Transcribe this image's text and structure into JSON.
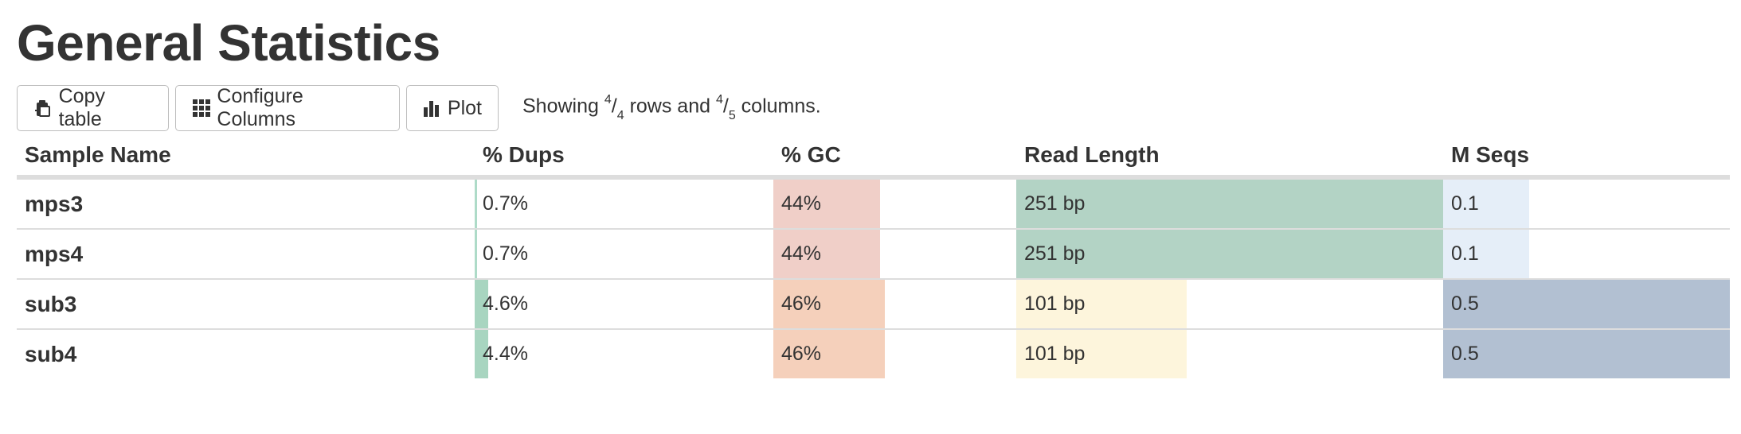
{
  "title": "General Statistics",
  "toolbar": {
    "copy_label": "Copy table",
    "configure_label": "Configure Columns",
    "plot_label": "Plot",
    "status_prefix": "Showing ",
    "rows_shown": "4",
    "rows_total": "4",
    "status_mid": " rows and ",
    "cols_shown": "4",
    "cols_total": "5",
    "status_suffix": " columns."
  },
  "columns": [
    "Sample Name",
    "% Dups",
    "% GC",
    "Read Length",
    "M Seqs"
  ],
  "rows": [
    {
      "name": "mps3",
      "dups": {
        "text": "0.7%",
        "fraction": 0.007,
        "color": "#aedbc8"
      },
      "gc": {
        "text": "44%",
        "fraction": 0.44,
        "color": "#f0cfc8"
      },
      "read_length": {
        "text": "251 bp",
        "fraction": 1.0,
        "color": "#b3d3c5"
      },
      "m_seqs": {
        "text": "0.1",
        "fraction": 0.3,
        "color": "#e5eef8"
      }
    },
    {
      "name": "mps4",
      "dups": {
        "text": "0.7%",
        "fraction": 0.007,
        "color": "#aedbc8"
      },
      "gc": {
        "text": "44%",
        "fraction": 0.44,
        "color": "#f0cfc8"
      },
      "read_length": {
        "text": "251 bp",
        "fraction": 1.0,
        "color": "#b3d3c5"
      },
      "m_seqs": {
        "text": "0.1",
        "fraction": 0.3,
        "color": "#e5eef8"
      }
    },
    {
      "name": "sub3",
      "dups": {
        "text": "4.6%",
        "fraction": 0.046,
        "color": "#a8d5c0"
      },
      "gc": {
        "text": "46%",
        "fraction": 0.46,
        "color": "#f5d0bb"
      },
      "read_length": {
        "text": "101 bp",
        "fraction": 0.4,
        "color": "#fdf5dc"
      },
      "m_seqs": {
        "text": "0.5",
        "fraction": 1.0,
        "color": "#b2c0d2"
      }
    },
    {
      "name": "sub4",
      "dups": {
        "text": "4.4%",
        "fraction": 0.044,
        "color": "#a8d5c0"
      },
      "gc": {
        "text": "46%",
        "fraction": 0.46,
        "color": "#f5d0bb"
      },
      "read_length": {
        "text": "101 bp",
        "fraction": 0.4,
        "color": "#fdf5dc"
      },
      "m_seqs": {
        "text": "0.5",
        "fraction": 1.0,
        "color": "#b2c0d2"
      }
    }
  ]
}
